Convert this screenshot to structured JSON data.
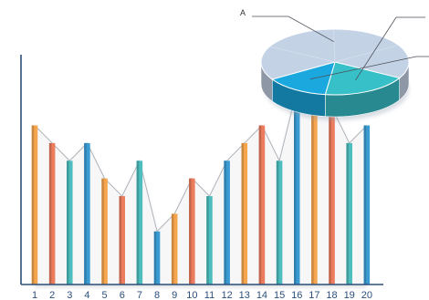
{
  "chart_data": [
    {
      "type": "bar",
      "categories": [
        "1",
        "2",
        "3",
        "4",
        "5",
        "6",
        "7",
        "8",
        "9",
        "10",
        "11",
        "12",
        "13",
        "14",
        "15",
        "16",
        "17",
        "18",
        "19",
        "20"
      ],
      "values": [
        9,
        8,
        7,
        8,
        6,
        5,
        7,
        3,
        4,
        6,
        5,
        7,
        8,
        9,
        7,
        11,
        10,
        10,
        8,
        9
      ],
      "ylim": [
        0,
        13
      ],
      "grid": false,
      "colors": [
        "#F5A54E",
        "#EB7C5E",
        "#4DBDBD",
        "#3A9BD2"
      ]
    },
    {
      "type": "pie",
      "slices": [
        {
          "label": "A",
          "value": 67,
          "color": "#C4D2E6"
        },
        {
          "label": "",
          "value": 19,
          "color": "#37C0C8"
        },
        {
          "label": "",
          "value": 14,
          "color": "#1BA8DF"
        }
      ],
      "style": "3d"
    }
  ]
}
